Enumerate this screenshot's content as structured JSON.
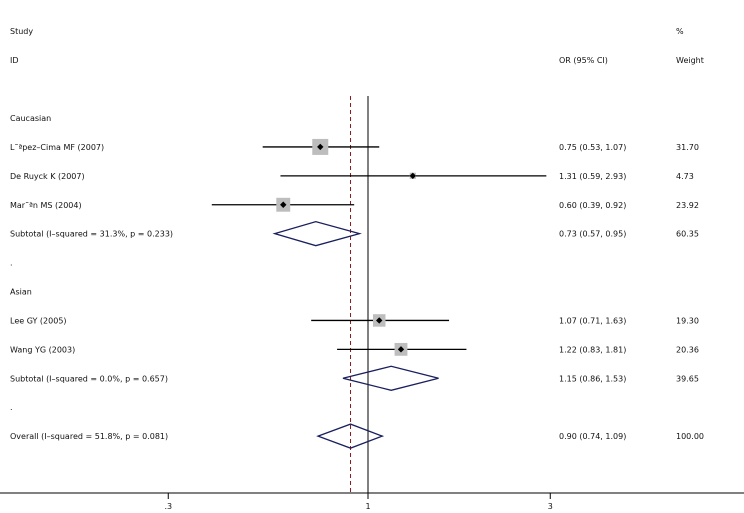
{
  "chart_data": {
    "type": "forest",
    "headers": {
      "study_top": "Study",
      "study_bottom": "ID",
      "or": "OR (95% CI)",
      "weight_top": "%",
      "weight_bottom": "Weight"
    },
    "x_axis": {
      "scale": "log",
      "ticks": [
        {
          "value": 0.3,
          "label": ".3"
        },
        {
          "value": 1,
          "label": "1"
        },
        {
          "value": 3,
          "label": "3"
        }
      ]
    },
    "null_line": 1,
    "overall_line": 0.9,
    "rows": [
      {
        "kind": "group",
        "label": "Caucasian"
      },
      {
        "kind": "study",
        "label": "L˜ªpez–Cima MF (2007)",
        "or": 0.75,
        "lo": 0.53,
        "hi": 1.07,
        "ci_text": "0.75 (0.53, 1.07)",
        "weight": "31.70"
      },
      {
        "kind": "study",
        "label": "De Ruyck K (2007)",
        "or": 1.31,
        "lo": 0.59,
        "hi": 2.93,
        "ci_text": "1.31 (0.59, 2.93)",
        "weight": "4.73"
      },
      {
        "kind": "study",
        "label": "Mar˜ªn MS (2004)",
        "or": 0.6,
        "lo": 0.39,
        "hi": 0.92,
        "ci_text": "0.60 (0.39, 0.92)",
        "weight": "23.92"
      },
      {
        "kind": "subtotal",
        "label": "Subtotal  (I–squared = 31.3%, p = 0.233)",
        "or": 0.73,
        "lo": 0.57,
        "hi": 0.95,
        "ci_text": "0.73 (0.57, 0.95)",
        "weight": "60.35"
      },
      {
        "kind": "spacer",
        "label": "."
      },
      {
        "kind": "group",
        "label": "Asian"
      },
      {
        "kind": "study",
        "label": "Lee GY (2005)",
        "or": 1.07,
        "lo": 0.71,
        "hi": 1.63,
        "ci_text": "1.07 (0.71, 1.63)",
        "weight": "19.30"
      },
      {
        "kind": "study",
        "label": "Wang YG (2003)",
        "or": 1.22,
        "lo": 0.83,
        "hi": 1.81,
        "ci_text": "1.22 (0.83, 1.81)",
        "weight": "20.36"
      },
      {
        "kind": "subtotal",
        "label": "Subtotal  (I–squared = 0.0%, p = 0.657)",
        "or": 1.15,
        "lo": 0.86,
        "hi": 1.53,
        "ci_text": "1.15 (0.86, 1.53)",
        "weight": "39.65"
      },
      {
        "kind": "spacer",
        "label": "."
      },
      {
        "kind": "overall",
        "label": "Overall  (I–squared = 51.8%, p = 0.081)",
        "or": 0.9,
        "lo": 0.74,
        "hi": 1.09,
        "ci_text": "0.90 (0.74, 1.09)",
        "weight": "100.00"
      }
    ],
    "colors": {
      "ci_line": "#000000",
      "box_fill": "#bdbdbd",
      "diamond": "#1a1f5e",
      "overall_line": "#8b1a1a",
      "axis": "#000000"
    }
  }
}
